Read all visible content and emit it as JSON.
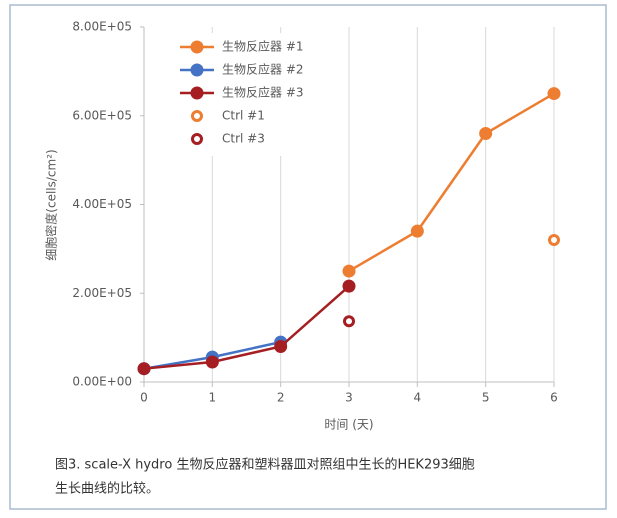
{
  "chart_data": {
    "type": "line",
    "x_title": "时间 (天)",
    "y_title": "细胞密度(cells/cm²)",
    "caption": [
      "图3. scale-X hydro 生物反应器和塑料器皿对照组中生长的HEK293细胞",
      "生长曲线的比较。"
    ],
    "x": [
      0,
      1,
      2,
      3,
      4,
      5,
      6
    ],
    "xlim": [
      0,
      6
    ],
    "xticks": [
      0,
      1,
      2,
      3,
      4,
      5,
      6
    ],
    "ylim": [
      0,
      800000
    ],
    "yticks": [
      {
        "value": 0,
        "label": "0.00E+00"
      },
      {
        "value": 200000,
        "label": "2.00E+05"
      },
      {
        "value": 400000,
        "label": "4.00E+05"
      },
      {
        "value": 600000,
        "label": "6.00E+05"
      },
      {
        "value": 800000,
        "label": "8.00E+05"
      }
    ],
    "grid": "x",
    "legend": "top-left",
    "series": [
      {
        "name": "生物反应器 #1",
        "color": "#ED7D31",
        "line": true,
        "marker": "filled",
        "values": [
          null,
          null,
          null,
          250000,
          340000,
          560000,
          650000
        ]
      },
      {
        "name": "生物反应器 #2",
        "color": "#4472C4",
        "line": true,
        "marker": "filled",
        "values": [
          30000,
          56000,
          90000,
          null,
          null,
          null,
          null
        ]
      },
      {
        "name": "生物反应器 #3",
        "color": "#A51E22",
        "line": true,
        "marker": "filled",
        "values": [
          30000,
          45000,
          80000,
          216000,
          null,
          null,
          null
        ]
      },
      {
        "name": "Ctrl #1",
        "color": "#ED7D31",
        "line": false,
        "marker": "hollow",
        "values": [
          null,
          null,
          null,
          null,
          null,
          null,
          320000
        ]
      },
      {
        "name": "Ctrl #3",
        "color": "#A51E22",
        "line": false,
        "marker": "hollow",
        "values": [
          null,
          null,
          null,
          137000,
          null,
          null,
          null
        ]
      }
    ]
  }
}
